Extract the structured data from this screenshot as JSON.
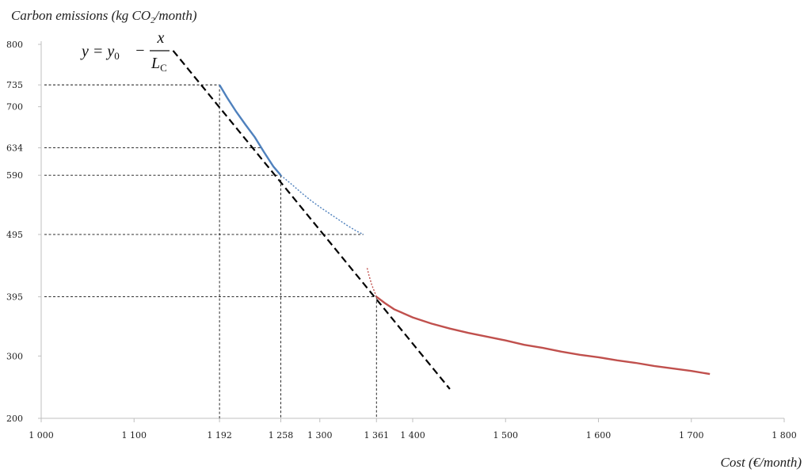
{
  "chart_data": {
    "type": "line",
    "ylabel_main": "Carbon emissions (kg CO",
    "ylabel_sub": "2",
    "ylabel_tail": "/month)",
    "xlabel": "Cost  (€/month)",
    "xlim": [
      1000,
      1800
    ],
    "ylim": [
      200,
      800
    ],
    "x_ticks": [
      {
        "value": 1000,
        "label": "1 000"
      },
      {
        "value": 1100,
        "label": "1 100"
      },
      {
        "value": 1192,
        "label": "1 192"
      },
      {
        "value": 1258,
        "label": "1 258"
      },
      {
        "value": 1300,
        "label": "1 300"
      },
      {
        "value": 1361,
        "label": "1 361"
      },
      {
        "value": 1400,
        "label": "1 400"
      },
      {
        "value": 1500,
        "label": "1 500"
      },
      {
        "value": 1600,
        "label": "1 600"
      },
      {
        "value": 1700,
        "label": "1 700"
      },
      {
        "value": 1800,
        "label": "1 800"
      }
    ],
    "y_ticks": [
      {
        "value": 200,
        "label": "200"
      },
      {
        "value": 300,
        "label": "300"
      },
      {
        "value": 395,
        "label": "395"
      },
      {
        "value": 495,
        "label": "495"
      },
      {
        "value": 590,
        "label": "590"
      },
      {
        "value": 634,
        "label": "634"
      },
      {
        "value": 700,
        "label": "700"
      },
      {
        "value": 735,
        "label": "735"
      },
      {
        "value": 800,
        "label": "800"
      }
    ],
    "equation": {
      "lhs": "y = y",
      "lhs_sub": "0",
      "minus": "−",
      "num": "x",
      "den": "L",
      "den_sub": "C"
    },
    "series": [
      {
        "color": "#4f81bd",
        "style": "solid",
        "points": [
          [
            1192,
            735
          ],
          [
            1200,
            715
          ],
          [
            1210,
            692
          ],
          [
            1220,
            671
          ],
          [
            1230,
            651
          ],
          [
            1240,
            627
          ],
          [
            1250,
            604
          ],
          [
            1258,
            590
          ]
        ]
      },
      {
        "color": "#4f81bd",
        "style": "dotted",
        "points": [
          [
            1258,
            590
          ],
          [
            1270,
            575
          ],
          [
            1280,
            562
          ],
          [
            1290,
            550
          ],
          [
            1300,
            539
          ],
          [
            1310,
            529
          ],
          [
            1320,
            519
          ],
          [
            1330,
            509
          ],
          [
            1340,
            500
          ],
          [
            1347,
            495
          ]
        ]
      },
      {
        "color": "#c0504d",
        "style": "dotted",
        "points": [
          [
            1351,
            441
          ],
          [
            1353,
            429
          ],
          [
            1356,
            414
          ],
          [
            1361,
            395
          ]
        ]
      },
      {
        "color": "#c0504d",
        "style": "solid",
        "points": [
          [
            1361,
            395
          ],
          [
            1370,
            385
          ],
          [
            1380,
            375
          ],
          [
            1400,
            362
          ],
          [
            1420,
            352
          ],
          [
            1440,
            344
          ],
          [
            1460,
            337
          ],
          [
            1480,
            331
          ],
          [
            1500,
            325
          ],
          [
            1520,
            318
          ],
          [
            1540,
            313
          ],
          [
            1560,
            307
          ],
          [
            1580,
            302
          ],
          [
            1600,
            298
          ],
          [
            1620,
            293
          ],
          [
            1640,
            289
          ],
          [
            1660,
            284
          ],
          [
            1680,
            280
          ],
          [
            1700,
            276
          ],
          [
            1720,
            271
          ]
        ]
      }
    ],
    "tangent_line": {
      "color": "#000000",
      "style": "dashed",
      "points": [
        [
          1142,
          790
        ],
        [
          1440,
          247
        ]
      ]
    },
    "guide_lines": [
      {
        "x": 1192,
        "y": 735
      },
      {
        "x": 1258,
        "y": 590
      },
      {
        "x": 1361,
        "y": 395
      },
      {
        "x": null,
        "y": 634,
        "x_end": 1237
      },
      {
        "x": null,
        "y": 495,
        "x_end": 1347
      }
    ],
    "grid": false
  }
}
